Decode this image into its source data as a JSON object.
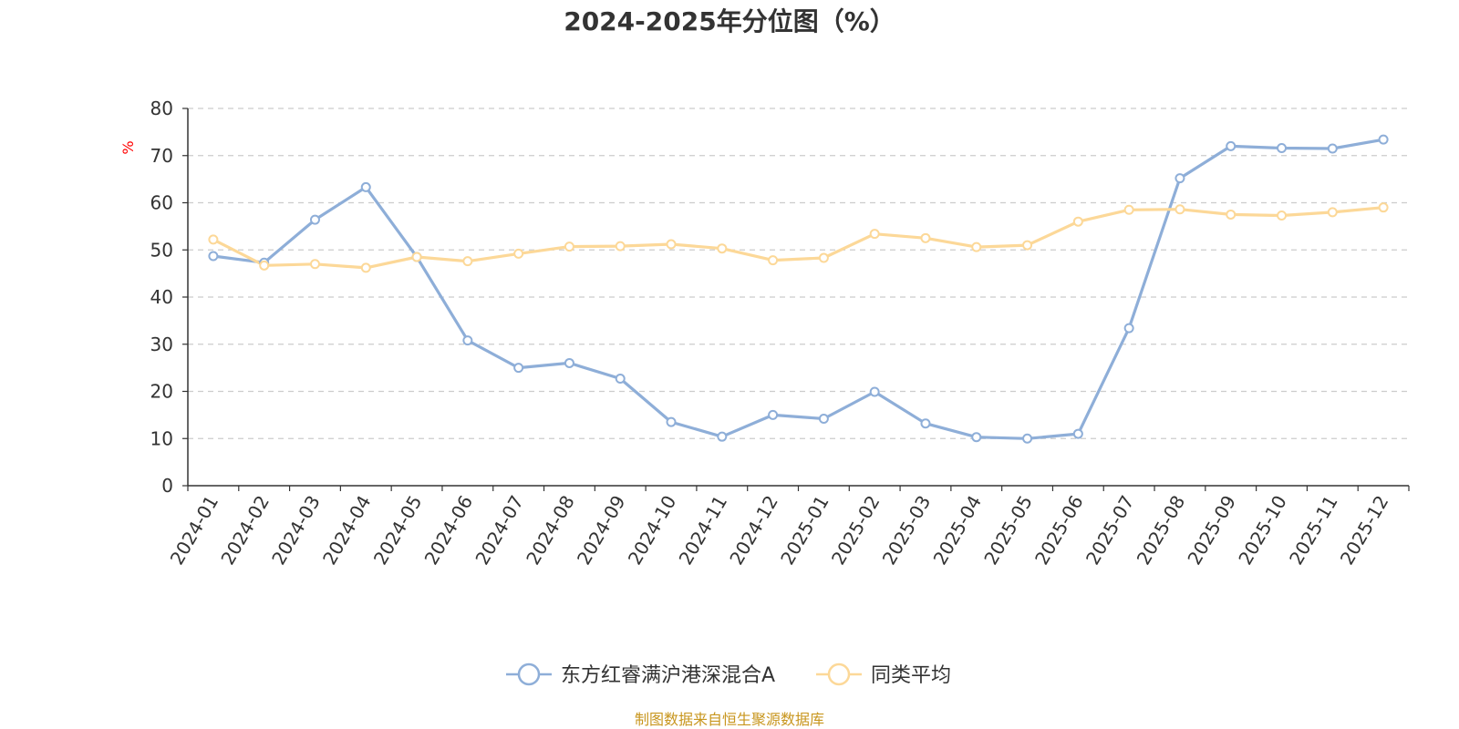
{
  "chart_data": {
    "type": "line",
    "title": "2024-2025年分位图（%）",
    "ylabel": "%",
    "ylim": [
      0,
      80
    ],
    "yticks": [
      0,
      10,
      20,
      30,
      40,
      50,
      60,
      70,
      80
    ],
    "categories": [
      "2024-01",
      "2024-02",
      "2024-03",
      "2024-04",
      "2024-05",
      "2024-06",
      "2024-07",
      "2024-08",
      "2024-09",
      "2024-10",
      "2024-11",
      "2024-12",
      "2025-01",
      "2025-02",
      "2025-03",
      "2025-04",
      "2025-05",
      "2025-06",
      "2025-07",
      "2025-08",
      "2025-09",
      "2025-10",
      "2025-11",
      "2025-12"
    ],
    "series": [
      {
        "name": "东方红睿满沪港深混合A",
        "color": "#8eaed8",
        "values": [
          48.7,
          47.3,
          56.4,
          63.3,
          48.5,
          30.8,
          25.0,
          26.0,
          22.7,
          13.5,
          10.4,
          15.0,
          14.2,
          19.9,
          13.2,
          10.3,
          10.0,
          11.0,
          33.4,
          65.2,
          72.0,
          71.6,
          71.5,
          73.4
        ]
      },
      {
        "name": "同类平均",
        "color": "#fcd898",
        "values": [
          52.2,
          46.7,
          47.0,
          46.2,
          48.5,
          47.6,
          49.2,
          50.7,
          50.8,
          51.2,
          50.3,
          47.8,
          48.3,
          53.4,
          52.5,
          50.6,
          51.0,
          56.0,
          58.5,
          58.6,
          57.5,
          57.3,
          58.0,
          59.0
        ]
      }
    ],
    "legend": "bottom-center",
    "grid": "dashed-horizontal"
  },
  "footer": {
    "source": "制图数据来自恒生聚源数据库"
  }
}
